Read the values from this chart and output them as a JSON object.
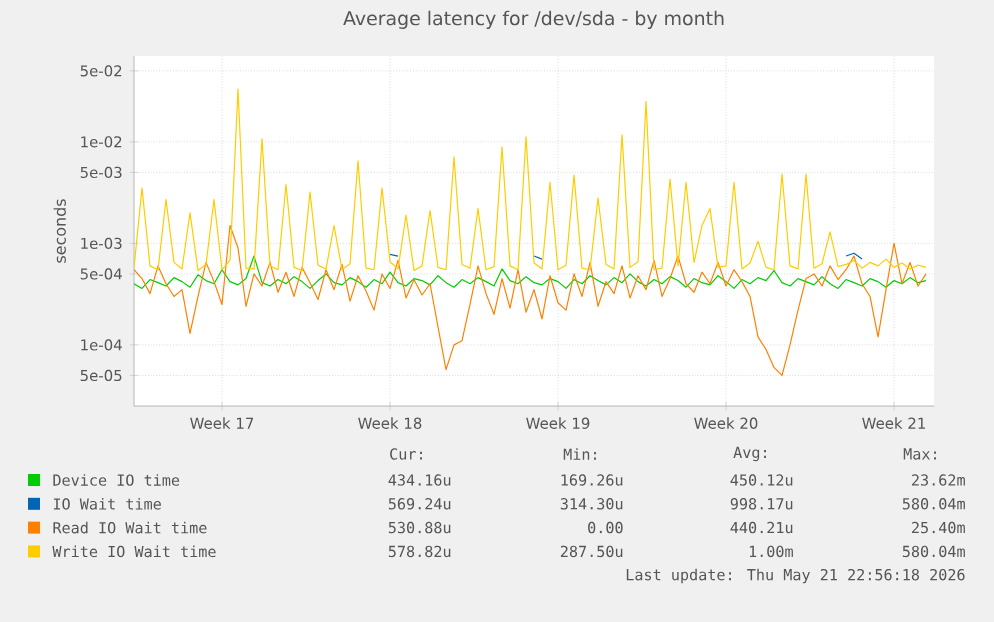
{
  "chart_data": {
    "type": "line",
    "title": "Average latency for /dev/sda - by month",
    "ylabel": "seconds",
    "log": true,
    "grid": true,
    "legend": "bottom",
    "ylim": [
      2.5e-05,
      0.07
    ],
    "yticks": [
      {
        "value": 5e-05,
        "label": "5e-05"
      },
      {
        "value": 0.0001,
        "label": "1e-04"
      },
      {
        "value": 0.0005,
        "label": "5e-04"
      },
      {
        "value": 0.001,
        "label": "1e-03"
      },
      {
        "value": 0.005,
        "label": "5e-03"
      },
      {
        "value": 0.01,
        "label": "1e-02"
      },
      {
        "value": 0.05,
        "label": "5e-02"
      }
    ],
    "categories": [
      null,
      null,
      null,
      null,
      null,
      null,
      null,
      null,
      null,
      null,
      null,
      "Week 17",
      null,
      null,
      null,
      null,
      null,
      null,
      null,
      null,
      null,
      null,
      null,
      null,
      null,
      null,
      null,
      null,
      null,
      null,
      null,
      null,
      "Week 18",
      null,
      null,
      null,
      null,
      null,
      null,
      null,
      null,
      null,
      null,
      null,
      null,
      null,
      null,
      null,
      null,
      null,
      null,
      null,
      null,
      "Week 19",
      null,
      null,
      null,
      null,
      null,
      null,
      null,
      null,
      null,
      null,
      null,
      null,
      null,
      null,
      null,
      null,
      null,
      null,
      null,
      null,
      "Week 20",
      null,
      null,
      null,
      null,
      null,
      null,
      null,
      null,
      null,
      null,
      null,
      null,
      null,
      null,
      null,
      null,
      null,
      null,
      null,
      null,
      "Week 21",
      null,
      null,
      null,
      null
    ],
    "series": [
      {
        "name": "Device IO time",
        "color": "#00cc00",
        "values": [
          0.0004,
          0.00036,
          0.00044,
          0.00041,
          0.00038,
          0.00046,
          0.00042,
          0.00037,
          0.00049,
          0.00043,
          0.0004,
          0.00055,
          0.00042,
          0.00039,
          0.00045,
          0.00075,
          0.00041,
          0.00038,
          0.00044,
          0.0004,
          0.00047,
          0.00042,
          0.00036,
          0.00043,
          0.0005,
          0.00041,
          0.00039,
          0.00046,
          0.00042,
          0.00037,
          0.00044,
          0.0004,
          0.00052,
          0.00041,
          0.00038,
          0.00045,
          0.00043,
          0.00039,
          0.00048,
          0.00041,
          0.00037,
          0.00044,
          0.0004,
          0.00046,
          0.00042,
          0.00038,
          0.00056,
          0.00043,
          0.0004,
          0.00047,
          0.00041,
          0.00039,
          0.00045,
          0.00042,
          0.00036,
          0.00044,
          0.0004,
          0.00048,
          0.00043,
          0.00039,
          0.00046,
          0.00041,
          0.0005,
          0.00042,
          0.00038,
          0.00044,
          0.0004,
          0.00047,
          0.00043,
          0.00037,
          0.00045,
          0.00041,
          0.00039,
          0.00048,
          0.00042,
          0.00036,
          0.00044,
          0.0004,
          0.00046,
          0.00043,
          0.00054,
          0.00041,
          0.00038,
          0.00045,
          0.00042,
          0.00039,
          0.00047,
          0.0004,
          0.00036,
          0.00044,
          0.00041,
          0.00038,
          0.00045,
          0.00042,
          0.00037,
          0.00043,
          0.0004,
          0.00046,
          0.00041,
          0.00043
        ]
      },
      {
        "name": "IO Wait time",
        "color": "#0066b3",
        "values": [
          null,
          null,
          null,
          null,
          null,
          null,
          null,
          null,
          null,
          null,
          null,
          null,
          null,
          null,
          null,
          null,
          null,
          null,
          null,
          null,
          null,
          null,
          null,
          null,
          null,
          null,
          null,
          null,
          null,
          null,
          null,
          null,
          0.00078,
          0.00075,
          null,
          null,
          null,
          null,
          null,
          null,
          null,
          null,
          null,
          null,
          null,
          null,
          null,
          null,
          null,
          null,
          0.00075,
          0.0007,
          null,
          null,
          null,
          null,
          null,
          null,
          null,
          null,
          null,
          null,
          null,
          null,
          null,
          null,
          null,
          null,
          null,
          null,
          null,
          null,
          null,
          null,
          null,
          null,
          null,
          null,
          null,
          null,
          null,
          null,
          null,
          null,
          null,
          null,
          null,
          null,
          null,
          0.00075,
          0.0008,
          0.0007,
          null,
          null,
          null,
          null,
          null,
          null,
          null,
          null
        ]
      },
      {
        "name": "Read IO Wait time",
        "color": "#ff8000",
        "values": [
          0.00055,
          0.00045,
          0.00032,
          0.0006,
          0.0004,
          0.0003,
          0.00035,
          0.00013,
          0.0003,
          0.00065,
          0.00042,
          0.00025,
          0.0015,
          0.0009,
          0.00024,
          0.0005,
          0.00038,
          0.00065,
          0.00033,
          0.00052,
          0.0003,
          0.00058,
          0.00041,
          0.00028,
          0.00055,
          0.00035,
          0.00062,
          0.00027,
          0.00048,
          0.00034,
          0.00022,
          0.0005,
          0.00036,
          0.00068,
          0.00029,
          0.00044,
          0.00031,
          0.0004,
          0.00015,
          5.7e-05,
          0.0001,
          0.00011,
          0.00025,
          0.0006,
          0.00032,
          0.0002,
          0.00045,
          0.00023,
          0.00055,
          0.00021,
          0.00035,
          0.00018,
          0.00048,
          0.00026,
          0.00022,
          0.0005,
          0.0003,
          0.00065,
          0.00024,
          0.00042,
          0.00032,
          0.0006,
          0.00029,
          0.00048,
          0.00035,
          0.00068,
          0.0003,
          0.00045,
          0.00075,
          0.0004,
          0.00033,
          0.00052,
          0.0004,
          0.00065,
          0.00038,
          0.00055,
          0.00042,
          0.0003,
          0.00012,
          9e-05,
          6e-05,
          5e-05,
          0.0001,
          0.00022,
          0.00045,
          0.0005,
          0.00038,
          0.0006,
          0.00044,
          0.00055,
          0.00075,
          0.0004,
          0.0003,
          0.00012,
          0.00035,
          0.001,
          0.0004,
          0.00065,
          0.00038,
          0.0005
        ]
      },
      {
        "name": "Write IO Wait time",
        "color": "#ffcc00",
        "values": [
          0.00058,
          0.0035,
          0.0006,
          0.00055,
          0.0027,
          0.00065,
          0.00056,
          0.002,
          0.00054,
          0.00062,
          0.0027,
          0.00055,
          0.00068,
          0.033,
          0.00057,
          0.00056,
          0.0107,
          0.0006,
          0.00055,
          0.0038,
          0.00058,
          0.00054,
          0.0032,
          0.00061,
          0.00056,
          0.0015,
          0.00055,
          0.00063,
          0.0065,
          0.00057,
          0.00055,
          0.0035,
          0.00066,
          0.00056,
          0.0019,
          0.00054,
          0.0006,
          0.0021,
          0.00058,
          0.00055,
          0.0071,
          0.00062,
          0.00057,
          0.0022,
          0.00055,
          0.00059,
          0.0089,
          0.0006,
          0.00055,
          0.0112,
          0.00064,
          0.00056,
          0.004,
          0.00055,
          0.00061,
          0.0047,
          0.00057,
          0.00055,
          0.0028,
          0.00062,
          0.00056,
          0.0117,
          0.00058,
          0.00066,
          0.025,
          0.00055,
          0.00057,
          0.0043,
          0.0006,
          0.004,
          0.00065,
          0.0015,
          0.0022,
          0.00058,
          0.0006,
          0.004,
          0.00056,
          0.00064,
          0.00105,
          0.00058,
          0.00055,
          0.0048,
          0.0006,
          0.00056,
          0.0048,
          0.00057,
          0.00063,
          0.0013,
          0.00059,
          0.00062,
          0.00068,
          0.00057,
          0.00065,
          0.0006,
          0.0007,
          0.00058,
          0.00064,
          0.00056,
          0.00061,
          0.00058
        ]
      }
    ],
    "annotations": [
      "Cur:",
      "Min:",
      "Avg:",
      "Max:",
      "434.16u",
      "169.26u",
      "450.12u",
      "23.62m",
      "569.24u",
      "314.30u",
      "998.17u",
      "580.04m",
      "530.88u",
      "0.00",
      "440.21u",
      "25.40m",
      "578.82u",
      "287.50u",
      "1.00m",
      "580.04m",
      "Last update: Thu May 21 22:56:18 2026"
    ]
  }
}
